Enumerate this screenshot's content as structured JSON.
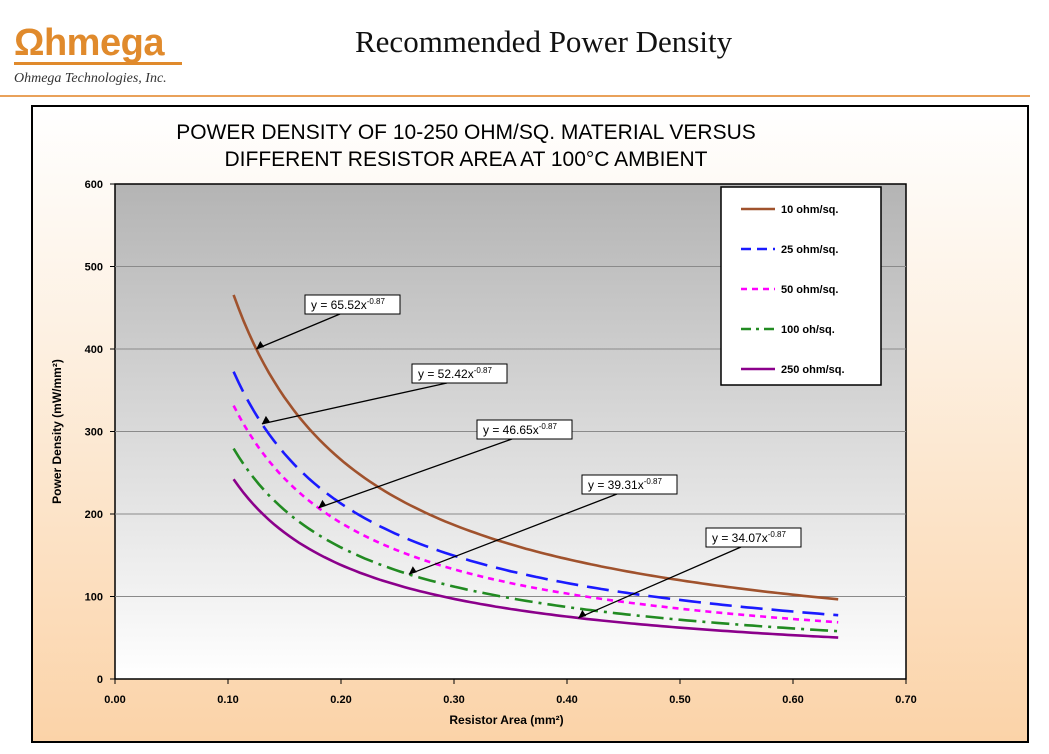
{
  "header": {
    "logo_text": "Ωhmega",
    "logo_subtitle": "Ohmega Technologies, Inc.",
    "slide_title": "Recommended Power Density"
  },
  "colors": {
    "accent": "#e08a2c",
    "plot_top": "#b4b4b4",
    "plot_bottom": "#ffffff"
  },
  "chart_data": {
    "type": "line",
    "title_lines": [
      "POWER DENSITY OF 10-250 OHM/SQ. MATERIAL VERSUS",
      "DIFFERENT RESISTOR AREA AT 100°C AMBIENT"
    ],
    "xlabel": "Resistor Area (mm²)",
    "ylabel": "Power Density (mW/mm²)",
    "xlim": [
      0,
      0.7
    ],
    "ylim": [
      0,
      600
    ],
    "x_ticks": [
      "0.00",
      "0.10",
      "0.20",
      "0.30",
      "0.40",
      "0.50",
      "0.60",
      "0.70"
    ],
    "y_ticks": [
      "0",
      "100",
      "200",
      "300",
      "400",
      "500",
      "600"
    ],
    "grid": "horizontal",
    "legend_position": "top-right",
    "x_domain": [
      0.105,
      0.64
    ],
    "series": [
      {
        "name": "10 ohm/sq.",
        "coef": 65.52,
        "exponent": -0.87,
        "color": "#a0522d",
        "dash": "solid-textured",
        "equation_label": "y = 65.52x",
        "equation_exp": "-0.87",
        "arrow_x": 0.125
      },
      {
        "name": "25 ohm/sq.",
        "coef": 52.42,
        "exponent": -0.87,
        "color": "#1a1aff",
        "dash": "long-dash",
        "equation_label": "y = 52.42x",
        "equation_exp": "-0.87",
        "arrow_x": 0.13
      },
      {
        "name": "50 ohm/sq.",
        "coef": 46.65,
        "exponent": -0.87,
        "color": "#ff00ff",
        "dash": "short-dash",
        "equation_label": "y = 46.65x",
        "equation_exp": "-0.87",
        "arrow_x": 0.18
      },
      {
        "name": "100 oh/sq.",
        "coef": 39.31,
        "exponent": -0.87,
        "color": "#228b22",
        "dash": "dash-dot",
        "equation_label": "y = 39.31x",
        "equation_exp": "-0.87",
        "arrow_x": 0.26
      },
      {
        "name": "250 ohm/sq.",
        "coef": 34.07,
        "exponent": -0.87,
        "color": "#8b008b",
        "dash": "solid",
        "equation_label": "y = 34.07x",
        "equation_exp": "-0.87",
        "arrow_x": 0.41
      }
    ]
  }
}
